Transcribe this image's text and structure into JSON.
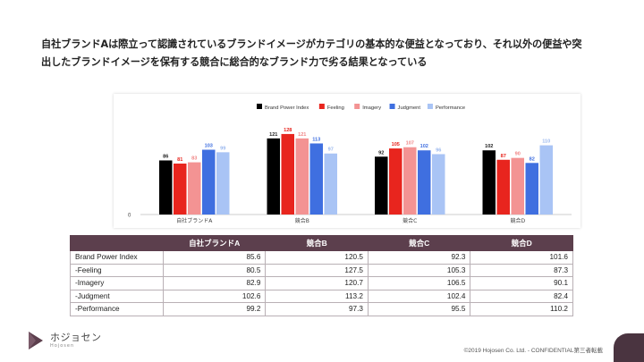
{
  "headline": {
    "line1": "自社ブランドAは際立って認識されているブランドイメージがカテゴリの基本的な便益となっており、それ以外の便益や突",
    "line2": "出したブランドイメージを保有する競合に総合的なブランド力で劣る結果となっている"
  },
  "chart_data": {
    "type": "bar",
    "categories": [
      "自社ブランドA",
      "競合B",
      "競合C",
      "競合D"
    ],
    "series": [
      {
        "name": "Brand Power Index",
        "color": "#000000",
        "label_color": "#222222",
        "values": [
          86,
          121,
          92,
          102
        ]
      },
      {
        "name": "Feeling",
        "color": "#e8251e",
        "label_color": "#e8251e",
        "values": [
          81,
          128,
          105,
          87
        ]
      },
      {
        "name": "Imagery",
        "color": "#f39393",
        "label_color": "#f08585",
        "values": [
          83,
          121,
          107,
          90
        ]
      },
      {
        "name": "Judgment",
        "color": "#3f6fe0",
        "label_color": "#3f6fe0",
        "values": [
          103,
          113,
          102,
          82
        ]
      },
      {
        "name": "Performance",
        "color": "#a9c4f5",
        "label_color": "#9bb8ee",
        "values": [
          99,
          97,
          96,
          110
        ]
      }
    ],
    "y_tick_labels": [
      "0"
    ],
    "ylim": [
      0,
      135
    ],
    "legend_position": "top",
    "title": "",
    "xlabel": "",
    "ylabel": ""
  },
  "table": {
    "headers": [
      "",
      "自社ブランドA",
      "競合B",
      "競合C",
      "競合D"
    ],
    "rows": [
      {
        "label": "Brand Power Index",
        "values": [
          "85.6",
          "120.5",
          "92.3",
          "101.6"
        ]
      },
      {
        "label": "-Feeling",
        "values": [
          "80.5",
          "127.5",
          "105.3",
          "87.3"
        ]
      },
      {
        "label": "-Imagery",
        "values": [
          "82.9",
          "120.7",
          "106.5",
          "90.1"
        ]
      },
      {
        "label": "-Judgment",
        "values": [
          "102.6",
          "113.2",
          "102.4",
          "82.4"
        ]
      },
      {
        "label": "-Performance",
        "values": [
          "99.2",
          "97.3",
          "95.5",
          "110.2"
        ]
      }
    ]
  },
  "logo": {
    "brand": "ホジョセン",
    "sub": "Hojosen"
  },
  "footer": {
    "text": "©2019 Hojosen Co. Ltd. - CONFIDENTIAL第三者転載"
  },
  "colors": {
    "header_bg": "#5c3f4d",
    "corner_tab": "#4a3440"
  }
}
